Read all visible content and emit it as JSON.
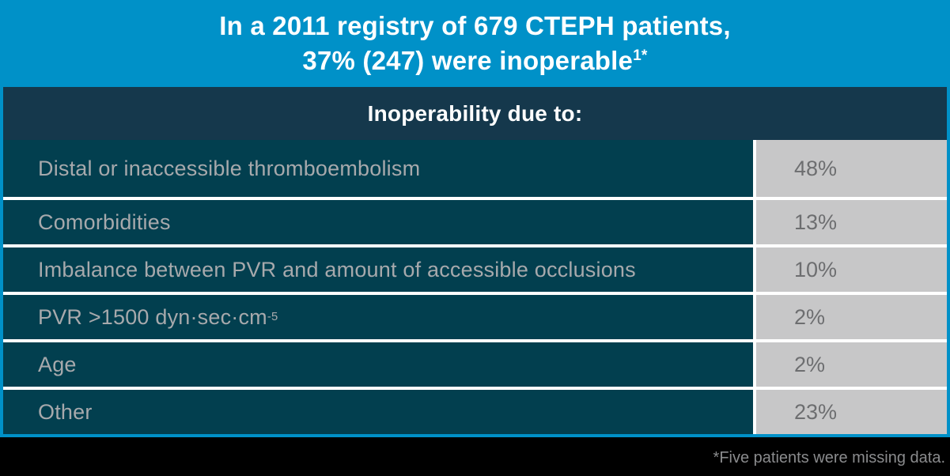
{
  "banner": {
    "title_line1": "In a 2011 registry of 679 CTEPH patients,",
    "title_line2": "37% (247) were inoperable",
    "title_sup": "1*"
  },
  "table": {
    "header": "Inoperability due to:",
    "rows": [
      {
        "label": "Distal or inaccessible thromboembolism",
        "value": "48%"
      },
      {
        "label": "Comorbidities",
        "value": "13%"
      },
      {
        "label": "Imbalance between PVR and amount of accessible occlusions",
        "value": "10%"
      },
      {
        "label": "PVR >1500 dyn·sec·cm",
        "label_sup": "-5",
        "value": "2%"
      },
      {
        "label": "Age",
        "value": "2%"
      },
      {
        "label": "Other",
        "value": "23%"
      }
    ]
  },
  "footer": {
    "note": "*Five patients were missing data."
  },
  "colors": {
    "banner_blue": "#0091C8",
    "header_navy": "#15384C",
    "row_teal": "#023F4F",
    "value_cell_gray": "#C7C7C8",
    "label_text_gray": "#A7A9AC",
    "value_text_gray": "#6D6E70",
    "separator_white": "#FFFFFF",
    "footer_black": "#000000",
    "footer_text_gray": "#8A8B8D"
  },
  "chart_data": {
    "type": "table",
    "title": "In a 2011 registry of 679 CTEPH patients, 37% (247) were inoperable",
    "subtitle": "Inoperability due to:",
    "categories": [
      "Distal or inaccessible thromboembolism",
      "Comorbidities",
      "Imbalance between PVR and amount of accessible occlusions",
      "PVR >1500 dyn·sec·cm⁻⁵",
      "Age",
      "Other"
    ],
    "values": [
      48,
      13,
      10,
      2,
      2,
      23
    ],
    "unit": "%",
    "annotations": [
      "*Five patients were missing data."
    ]
  }
}
